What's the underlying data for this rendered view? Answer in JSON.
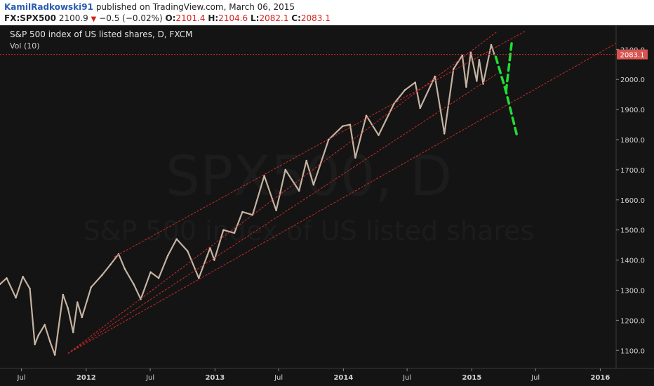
{
  "header": {
    "author": "KamilRadkowski91",
    "published_text": "published on TradingView.com, March 06, 2015",
    "symbol": "FX:SPX500",
    "last_price": "2100.9",
    "change": "−0.5 (−0.02%)",
    "open_label": "O:",
    "open_value": "2101.4",
    "high_label": "H:",
    "high_value": "2104.6",
    "low_label": "L:",
    "low_value": "2082.1",
    "close_label": "C:",
    "close_value": "2083.1"
  },
  "pane": {
    "legend_title": "S&P 500 index of US listed shares, D, FXCM",
    "volume_label": "Vol (10)",
    "watermark_symbol": "SPX500, D",
    "watermark_desc": "S&P 500 index of US listed shares"
  },
  "colors": {
    "background": "#141414",
    "candle": "#d8c3b0",
    "channel": "#cc2a2a",
    "forecast": "#22dd33",
    "price_tag": "#d9534f"
  },
  "chart_data": {
    "type": "line",
    "title": "S&P 500 index of US listed shares, D, FXCM",
    "x_range": [
      "2011-05-01",
      "2016-02-15"
    ],
    "ylim": [
      1040,
      2180
    ],
    "y_ticks": [
      1100.0,
      1200.0,
      1300.0,
      1400.0,
      1500.0,
      1600.0,
      1700.0,
      1800.0,
      1900.0,
      2000.0,
      2100.0
    ],
    "x_ticks": [
      {
        "date": "2011-07-01",
        "label": "Jul"
      },
      {
        "date": "2012-01-01",
        "label": "2012"
      },
      {
        "date": "2012-07-01",
        "label": "Jul"
      },
      {
        "date": "2013-01-01",
        "label": "2013"
      },
      {
        "date": "2013-07-01",
        "label": "Jul"
      },
      {
        "date": "2014-01-01",
        "label": "2014"
      },
      {
        "date": "2014-07-01",
        "label": "Jul"
      },
      {
        "date": "2015-01-01",
        "label": "2015"
      },
      {
        "date": "2015-07-01",
        "label": "Jul"
      },
      {
        "date": "2016-01-01",
        "label": "2016"
      }
    ],
    "current_price": {
      "value": 2083.1,
      "label": "2083.1"
    },
    "series": [
      {
        "values": [
          [
            "2011-05-01",
            1320
          ],
          [
            "2011-05-20",
            1340
          ],
          [
            "2011-06-15",
            1275
          ],
          [
            "2011-07-05",
            1345
          ],
          [
            "2011-07-25",
            1305
          ],
          [
            "2011-08-08",
            1120
          ],
          [
            "2011-08-18",
            1150
          ],
          [
            "2011-09-05",
            1185
          ],
          [
            "2011-09-20",
            1130
          ],
          [
            "2011-10-04",
            1085
          ],
          [
            "2011-10-27",
            1285
          ],
          [
            "2011-11-10",
            1240
          ],
          [
            "2011-11-25",
            1160
          ],
          [
            "2011-12-07",
            1260
          ],
          [
            "2011-12-20",
            1210
          ],
          [
            "2012-01-15",
            1310
          ],
          [
            "2012-02-15",
            1350
          ],
          [
            "2012-03-10",
            1385
          ],
          [
            "2012-04-02",
            1420
          ],
          [
            "2012-04-20",
            1370
          ],
          [
            "2012-05-15",
            1320
          ],
          [
            "2012-06-04",
            1270
          ],
          [
            "2012-07-02",
            1360
          ],
          [
            "2012-07-25",
            1340
          ],
          [
            "2012-08-20",
            1415
          ],
          [
            "2012-09-14",
            1470
          ],
          [
            "2012-10-15",
            1430
          ],
          [
            "2012-11-16",
            1340
          ],
          [
            "2012-12-18",
            1440
          ],
          [
            "2012-12-30",
            1400
          ],
          [
            "2013-01-25",
            1500
          ],
          [
            "2013-02-25",
            1490
          ],
          [
            "2013-03-20",
            1560
          ],
          [
            "2013-04-18",
            1550
          ],
          [
            "2013-05-21",
            1680
          ],
          [
            "2013-06-24",
            1565
          ],
          [
            "2013-07-20",
            1700
          ],
          [
            "2013-08-28",
            1630
          ],
          [
            "2013-09-18",
            1730
          ],
          [
            "2013-10-08",
            1650
          ],
          [
            "2013-11-20",
            1800
          ],
          [
            "2013-12-30",
            1845
          ],
          [
            "2014-01-20",
            1850
          ],
          [
            "2014-02-04",
            1740
          ],
          [
            "2014-03-07",
            1880
          ],
          [
            "2014-04-11",
            1815
          ],
          [
            "2014-05-25",
            1920
          ],
          [
            "2014-06-25",
            1965
          ],
          [
            "2014-07-24",
            1990
          ],
          [
            "2014-08-07",
            1905
          ],
          [
            "2014-09-18",
            2010
          ],
          [
            "2014-10-15",
            1820
          ],
          [
            "2014-11-10",
            2035
          ],
          [
            "2014-12-05",
            2080
          ],
          [
            "2014-12-16",
            1975
          ],
          [
            "2014-12-29",
            2090
          ],
          [
            "2015-01-15",
            1995
          ],
          [
            "2015-01-22",
            2065
          ],
          [
            "2015-02-02",
            1985
          ],
          [
            "2015-02-25",
            2115
          ],
          [
            "2015-03-06",
            2083
          ]
        ]
      }
    ],
    "annotations": [
      {
        "type": "channel_line",
        "start": [
          "2011-11-10",
          1090
        ],
        "end": [
          "2015-03-15",
          2160
        ]
      },
      {
        "type": "channel_line",
        "start": [
          "2011-11-10",
          1090
        ],
        "end": [
          "2016-02-15",
          2120
        ]
      },
      {
        "type": "channel_line",
        "start": [
          "2011-11-10",
          1090
        ],
        "end": [
          "2015-03-15",
          2020
        ]
      },
      {
        "type": "channel_line",
        "start": [
          "2012-03-20",
          1410
        ],
        "end": [
          "2015-06-01",
          2160
        ]
      },
      {
        "type": "forecast_path",
        "points": [
          [
            "2015-03-10",
            2075
          ],
          [
            "2015-04-08",
            1960
          ],
          [
            "2015-05-10",
            1810
          ]
        ]
      },
      {
        "type": "forecast_path",
        "points": [
          [
            "2015-04-08",
            1960
          ],
          [
            "2015-04-25",
            2130
          ]
        ]
      }
    ]
  }
}
